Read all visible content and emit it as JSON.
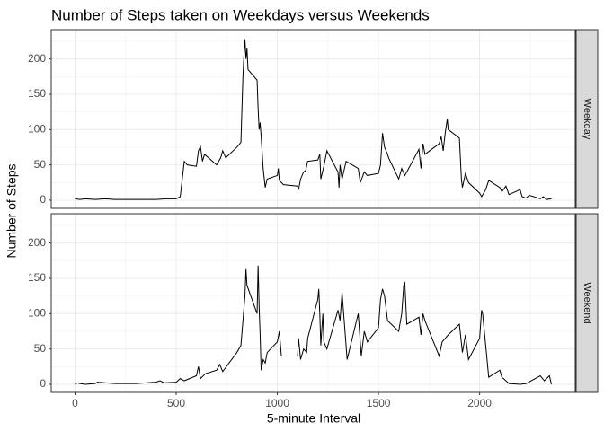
{
  "title": "Number of Steps taken on Weekdays versus Weekends",
  "x_label": "5-minute Interval",
  "y_label": "Number of Steps",
  "chart_data": [
    {
      "type": "line",
      "facet": "Weekday",
      "color": "#000000",
      "grid": true,
      "x": [
        0,
        25,
        50,
        100,
        150,
        200,
        300,
        400,
        450,
        500,
        520,
        540,
        555,
        600,
        610,
        620,
        630,
        640,
        700,
        720,
        730,
        745,
        800,
        820,
        830,
        835,
        840,
        845,
        850,
        855,
        900,
        905,
        910,
        915,
        920,
        930,
        940,
        950,
        1000,
        1005,
        1010,
        1030,
        1100,
        1105,
        1115,
        1130,
        1140,
        1150,
        1200,
        1210,
        1215,
        1230,
        1245,
        1300,
        1305,
        1310,
        1320,
        1340,
        1400,
        1410,
        1430,
        1445,
        1500,
        1510,
        1520,
        1530,
        1545,
        1550,
        1600,
        1615,
        1630,
        1640,
        1700,
        1710,
        1720,
        1730,
        1800,
        1810,
        1820,
        1830,
        1840,
        1845,
        1900,
        1910,
        1915,
        1930,
        1945,
        2000,
        2010,
        2030,
        2045,
        2100,
        2110,
        2130,
        2145,
        2200,
        2210,
        2230,
        2245,
        2300,
        2315,
        2330,
        2355
      ],
      "values": [
        2,
        1,
        2,
        1,
        2,
        1,
        1,
        1,
        2,
        2,
        5,
        55,
        50,
        48,
        70,
        76,
        55,
        65,
        50,
        60,
        70,
        60,
        75,
        82,
        175,
        205,
        228,
        200,
        215,
        185,
        170,
        130,
        100,
        110,
        90,
        45,
        18,
        30,
        35,
        45,
        28,
        22,
        20,
        15,
        30,
        40,
        42,
        55,
        57,
        65,
        30,
        48,
        70,
        40,
        18,
        50,
        30,
        55,
        45,
        25,
        40,
        35,
        38,
        50,
        95,
        75,
        65,
        60,
        30,
        45,
        35,
        40,
        72,
        45,
        80,
        65,
        80,
        90,
        70,
        95,
        115,
        100,
        88,
        30,
        18,
        38,
        25,
        10,
        5,
        15,
        28,
        18,
        12,
        20,
        8,
        15,
        5,
        3,
        7,
        2,
        5,
        1,
        2
      ],
      "xlim": [
        -117.75,
        2472.75
      ],
      "ylim": [
        -11.5,
        241.5
      ],
      "xticks": [
        0,
        500,
        1000,
        1500,
        2000
      ],
      "yticks": [
        0,
        50,
        100,
        150,
        200
      ],
      "x_minor_ticks": [
        250,
        750,
        1250,
        1750,
        2250
      ],
      "y_minor_ticks": [
        25,
        75,
        125,
        175,
        225
      ]
    },
    {
      "type": "line",
      "facet": "Weekend",
      "color": "#000000",
      "grid": true,
      "x": [
        0,
        10,
        25,
        50,
        100,
        110,
        200,
        300,
        400,
        420,
        440,
        500,
        520,
        540,
        600,
        610,
        620,
        645,
        700,
        715,
        730,
        800,
        820,
        840,
        845,
        850,
        900,
        905,
        910,
        915,
        920,
        930,
        940,
        950,
        1000,
        1010,
        1020,
        1100,
        1105,
        1115,
        1130,
        1145,
        1150,
        1200,
        1205,
        1210,
        1215,
        1225,
        1230,
        1245,
        1300,
        1310,
        1320,
        1345,
        1400,
        1415,
        1430,
        1445,
        1500,
        1510,
        1520,
        1530,
        1545,
        1600,
        1615,
        1625,
        1630,
        1640,
        1700,
        1710,
        1720,
        1730,
        1800,
        1815,
        1830,
        1845,
        1900,
        1915,
        1930,
        1945,
        2000,
        2010,
        2015,
        2030,
        2045,
        2100,
        2110,
        2130,
        2145,
        2200,
        2230,
        2300,
        2320,
        2345,
        2355
      ],
      "values": [
        0,
        2,
        1,
        0,
        1,
        3,
        1,
        1,
        3,
        5,
        2,
        3,
        8,
        5,
        12,
        25,
        8,
        15,
        20,
        28,
        18,
        45,
        55,
        125,
        163,
        140,
        100,
        168,
        110,
        70,
        20,
        35,
        30,
        45,
        60,
        75,
        40,
        40,
        65,
        35,
        50,
        45,
        65,
        120,
        135,
        100,
        55,
        100,
        60,
        50,
        105,
        90,
        130,
        35,
        100,
        40,
        75,
        60,
        80,
        120,
        135,
        125,
        90,
        75,
        100,
        140,
        145,
        85,
        95,
        70,
        100,
        90,
        40,
        60,
        65,
        70,
        85,
        45,
        70,
        35,
        65,
        105,
        100,
        55,
        10,
        20,
        10,
        5,
        1,
        0,
        1,
        12,
        5,
        12,
        0
      ],
      "xlim": [
        -117.75,
        2472.75
      ],
      "ylim": [
        -11.5,
        241.5
      ],
      "xticks": [
        0,
        500,
        1000,
        1500,
        2000
      ],
      "yticks": [
        0,
        50,
        100,
        150,
        200
      ],
      "x_minor_ticks": [
        250,
        750,
        1250,
        1750,
        2250
      ],
      "y_minor_ticks": [
        25,
        75,
        125,
        175,
        225
      ]
    }
  ]
}
